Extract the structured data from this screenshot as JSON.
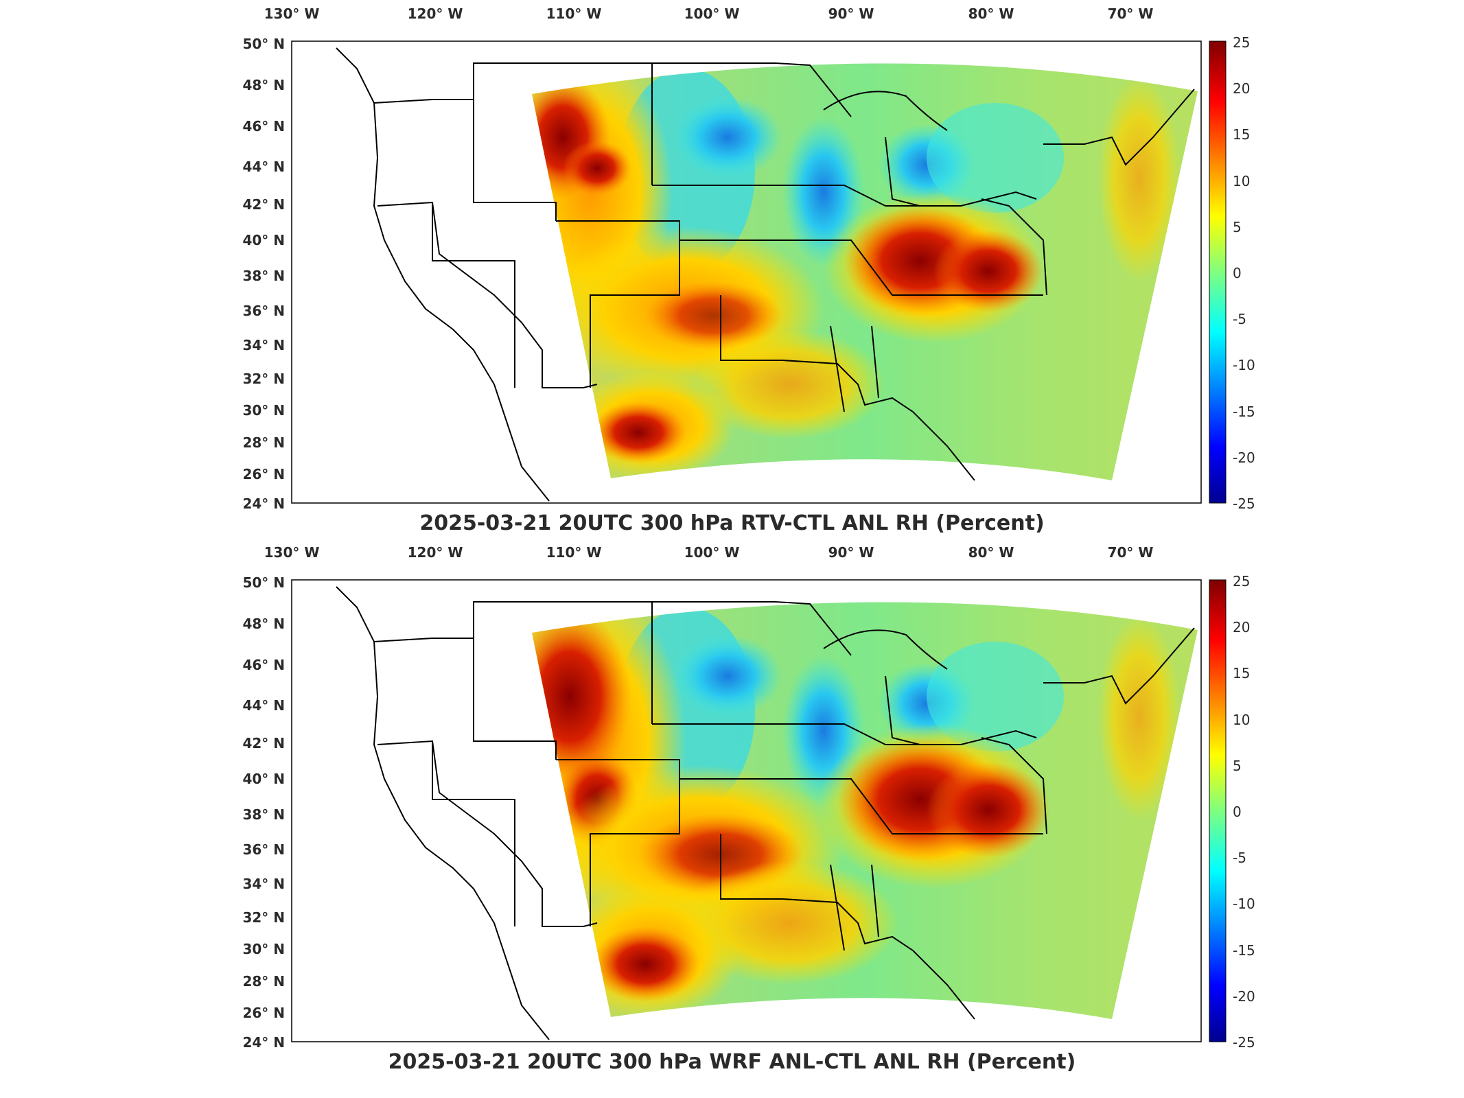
{
  "colors": {
    "background": "#ffffff",
    "land_outline": "#000000",
    "palette": "jet",
    "frame": "#000000"
  },
  "panels": [
    {
      "title": "2025-03-21 20UTC 300 hPa RTV-CTL ANL RH (Percent)",
      "lon_labels": [
        "130° W",
        "120° W",
        "110° W",
        "100° W",
        "90° W",
        "80° W",
        "70° W"
      ],
      "lat_labels": [
        "50° N",
        "48° N",
        "46° N",
        "44° N",
        "42° N",
        "40° N",
        "38° N",
        "36° N",
        "34° N",
        "32° N",
        "30° N",
        "28° N",
        "26° N",
        "24° N"
      ],
      "colorbar": {
        "ticks": [
          "25",
          "20",
          "15",
          "10",
          "5",
          "0",
          "-5",
          "-10",
          "-15",
          "-20",
          "-25"
        ],
        "min": -25,
        "max": 25
      },
      "hotspots": [
        {
          "region": "northern Rockies",
          "value": 22
        },
        {
          "region": "Ohio Valley / Kentucky",
          "value": 25
        },
        {
          "region": "southern Texas / Mexico",
          "value": 24
        },
        {
          "region": "Minnesota / Dakotas",
          "value": -8
        },
        {
          "region": "Great Lakes",
          "value": -10
        }
      ]
    },
    {
      "title": "2025-03-21 20UTC 300 hPa WRF ANL-CTL ANL RH (Percent)",
      "lon_labels": [
        "130° W",
        "120° W",
        "110° W",
        "100° W",
        "90° W",
        "80° W",
        "70° W"
      ],
      "lat_labels": [
        "50° N",
        "48° N",
        "46° N",
        "44° N",
        "42° N",
        "40° N",
        "38° N",
        "36° N",
        "34° N",
        "32° N",
        "30° N",
        "28° N",
        "26° N",
        "24° N"
      ],
      "colorbar": {
        "ticks": [
          "25",
          "20",
          "15",
          "10",
          "5",
          "0",
          "-5",
          "-10",
          "-15",
          "-20",
          "-25"
        ],
        "min": -25,
        "max": 25
      },
      "hotspots": [
        {
          "region": "northern Rockies",
          "value": 24
        },
        {
          "region": "Ohio Valley / Kentucky",
          "value": 25
        },
        {
          "region": "southern Texas / Mexico",
          "value": 24
        },
        {
          "region": "Minnesota / Dakotas",
          "value": -8
        },
        {
          "region": "Great Lakes",
          "value": -10
        }
      ]
    }
  ]
}
